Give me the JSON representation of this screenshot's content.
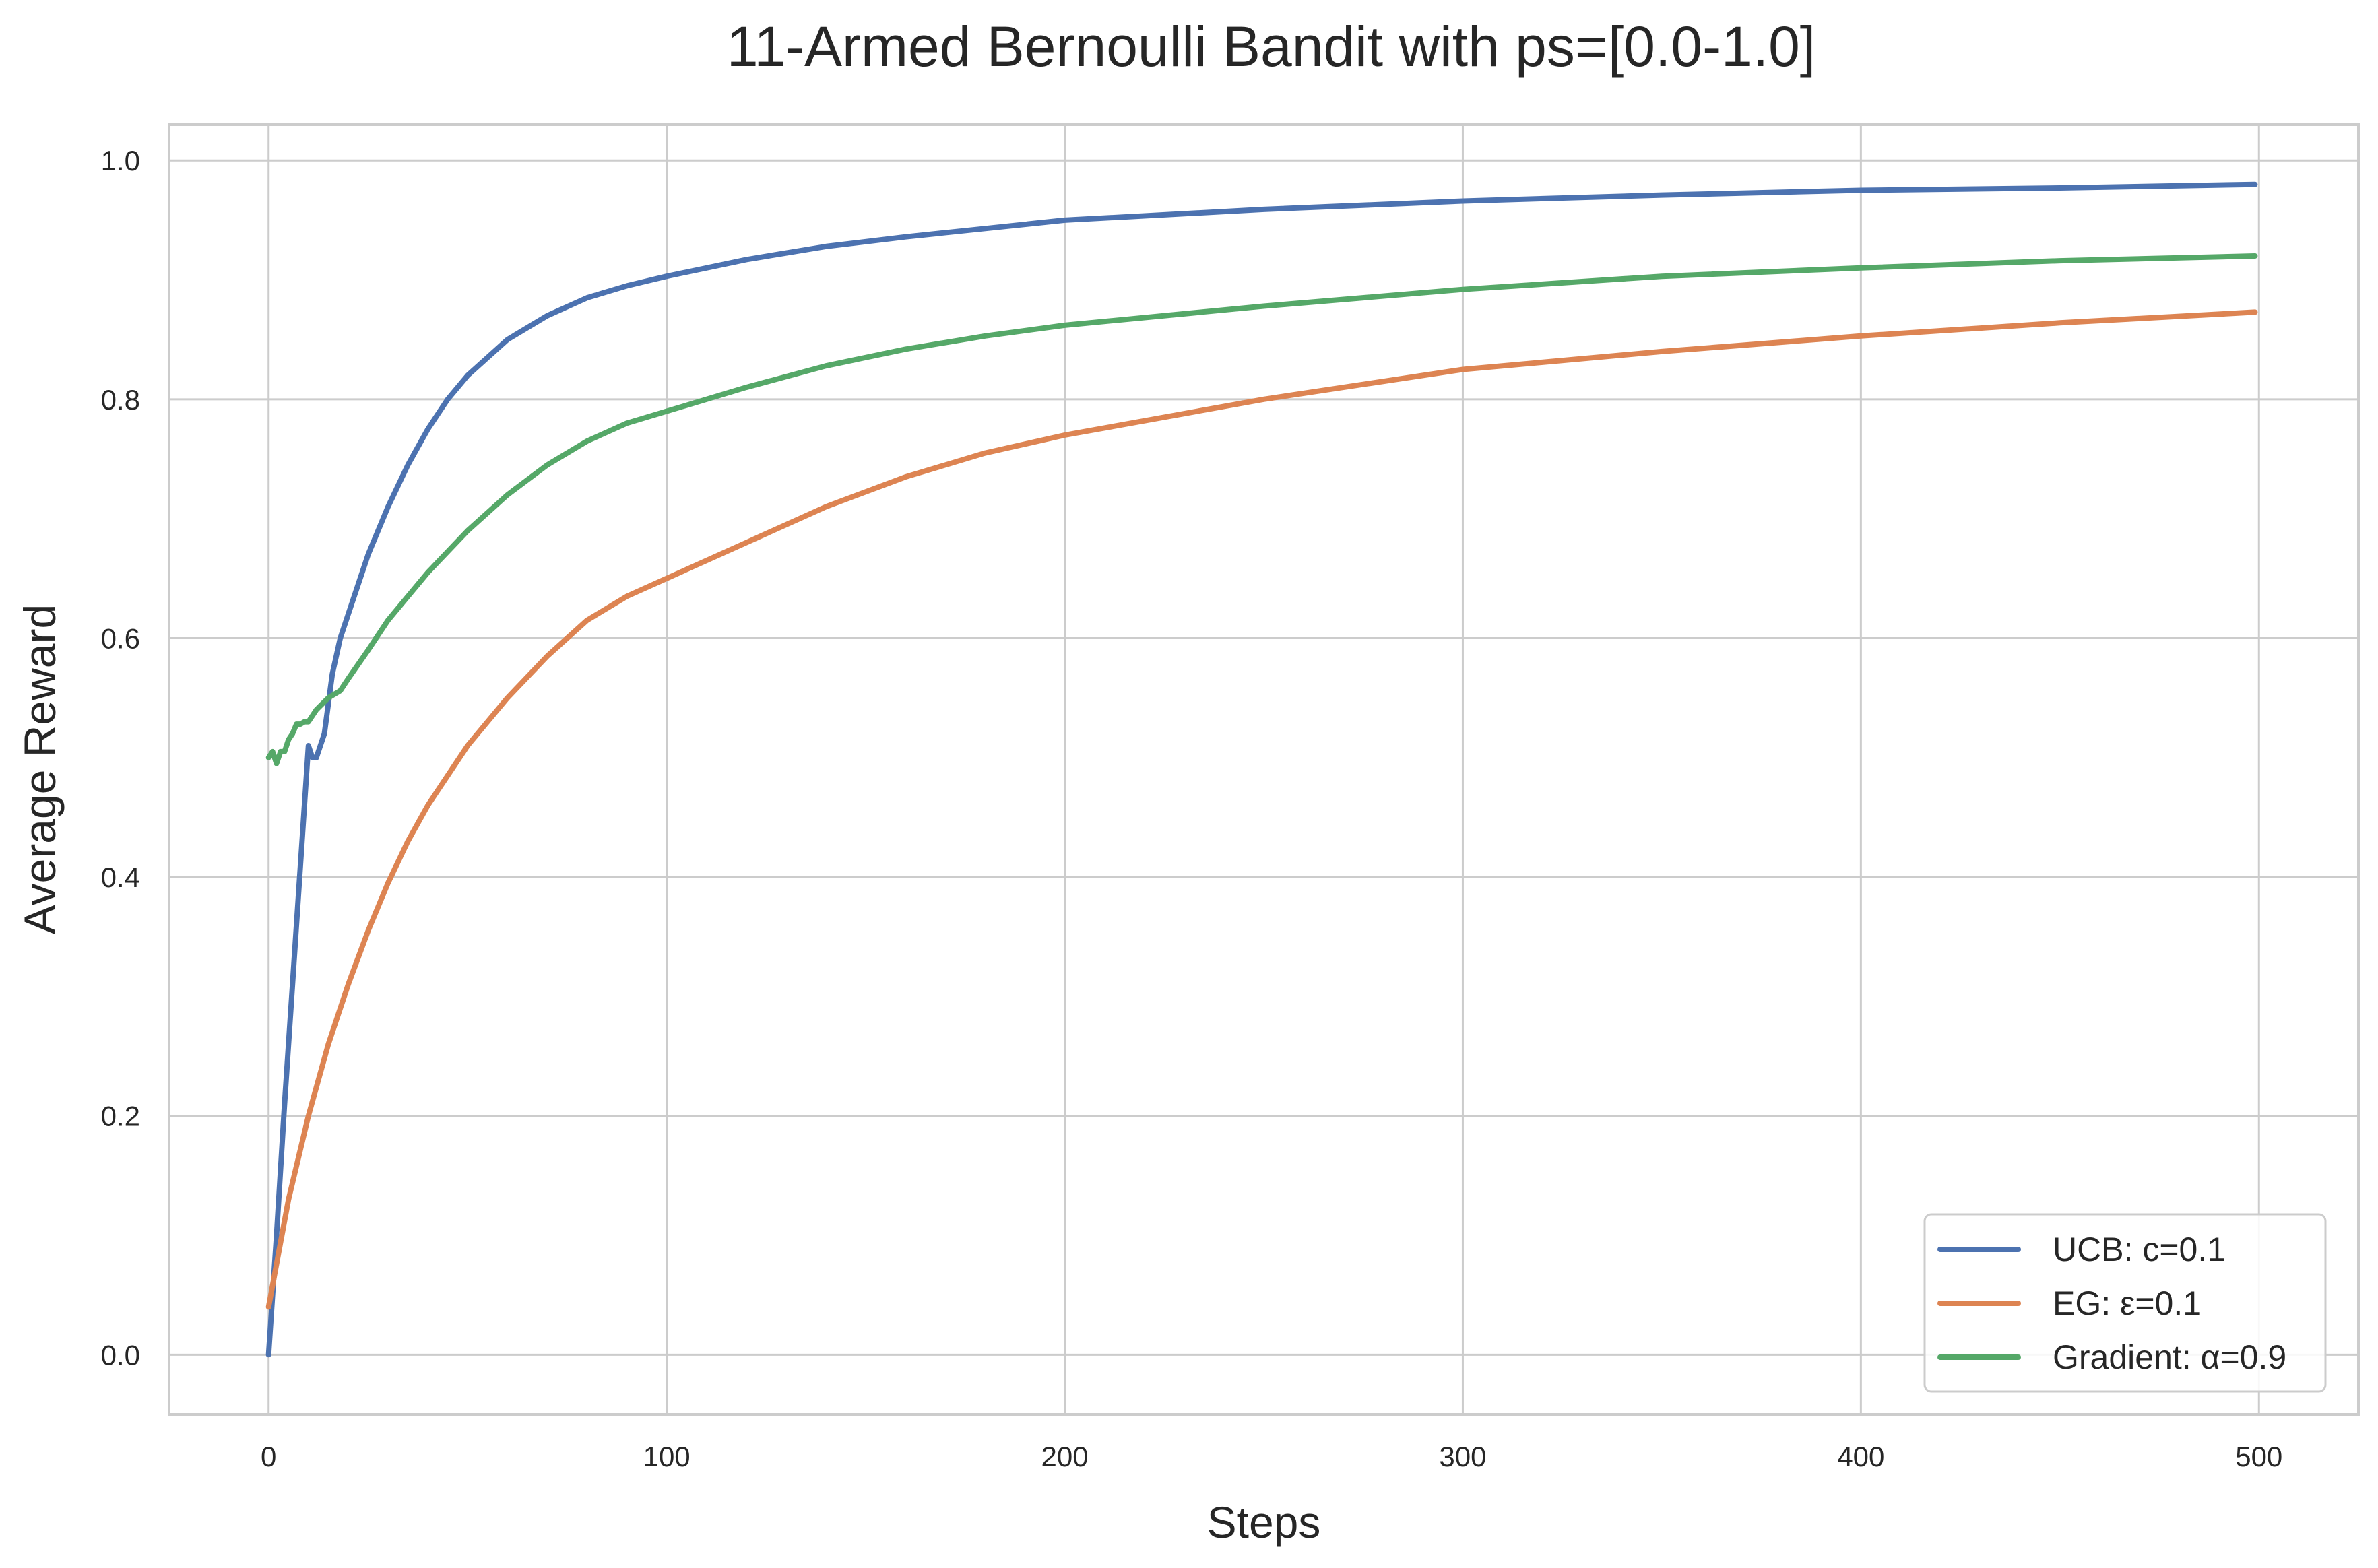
{
  "chart_data": {
    "type": "line",
    "title": "11-Armed Bernoulli Bandit with ps=[0.0-1.0]",
    "xlabel": "Steps",
    "ylabel": "Average Reward",
    "xlim": [
      -25,
      525
    ],
    "ylim": [
      -0.05,
      1.03
    ],
    "xticks": [
      0,
      100,
      200,
      300,
      400,
      500
    ],
    "yticks": [
      0.0,
      0.2,
      0.4,
      0.6,
      0.8,
      1.0
    ],
    "xtick_labels": [
      "0",
      "100",
      "200",
      "300",
      "400",
      "500"
    ],
    "ytick_labels": [
      "0.0",
      "0.2",
      "0.4",
      "0.6",
      "0.8",
      "1.0"
    ],
    "grid": true,
    "legend_position": "lower-right",
    "series": [
      {
        "name": "UCB: c=0.1",
        "color": "#4c72b0",
        "x": [
          0,
          2,
          4,
          6,
          8,
          10,
          11,
          12,
          14,
          16,
          18,
          20,
          25,
          30,
          35,
          40,
          45,
          50,
          60,
          70,
          80,
          90,
          100,
          120,
          140,
          160,
          180,
          200,
          250,
          300,
          350,
          400,
          450,
          499
        ],
        "y": [
          0.0,
          0.1,
          0.21,
          0.31,
          0.41,
          0.51,
          0.5,
          0.5,
          0.52,
          0.57,
          0.6,
          0.62,
          0.67,
          0.71,
          0.745,
          0.775,
          0.8,
          0.82,
          0.85,
          0.87,
          0.885,
          0.895,
          0.903,
          0.917,
          0.928,
          0.936,
          0.943,
          0.95,
          0.959,
          0.966,
          0.971,
          0.975,
          0.977,
          0.98
        ]
      },
      {
        "name": "EG: ε=0.1",
        "color": "#dd8452",
        "x": [
          0,
          5,
          10,
          15,
          20,
          25,
          30,
          35,
          40,
          45,
          50,
          60,
          70,
          80,
          90,
          100,
          120,
          140,
          160,
          180,
          200,
          250,
          300,
          350,
          400,
          450,
          499
        ],
        "y": [
          0.04,
          0.13,
          0.2,
          0.26,
          0.31,
          0.355,
          0.395,
          0.43,
          0.46,
          0.485,
          0.51,
          0.55,
          0.585,
          0.615,
          0.635,
          0.65,
          0.68,
          0.71,
          0.735,
          0.755,
          0.77,
          0.8,
          0.825,
          0.84,
          0.853,
          0.864,
          0.873
        ]
      },
      {
        "name": "Gradient: α=0.9",
        "color": "#55a868",
        "x": [
          0,
          1,
          2,
          3,
          4,
          5,
          6,
          7,
          8,
          9,
          10,
          12,
          15,
          18,
          20,
          25,
          30,
          35,
          40,
          50,
          60,
          70,
          80,
          90,
          100,
          120,
          140,
          160,
          180,
          200,
          250,
          300,
          350,
          400,
          450,
          499
        ],
        "y": [
          0.5,
          0.505,
          0.495,
          0.505,
          0.505,
          0.515,
          0.52,
          0.528,
          0.528,
          0.53,
          0.53,
          0.54,
          0.55,
          0.556,
          0.566,
          0.59,
          0.615,
          0.635,
          0.655,
          0.69,
          0.72,
          0.745,
          0.765,
          0.78,
          0.79,
          0.81,
          0.828,
          0.842,
          0.853,
          0.862,
          0.878,
          0.892,
          0.903,
          0.91,
          0.916,
          0.92
        ]
      }
    ]
  }
}
